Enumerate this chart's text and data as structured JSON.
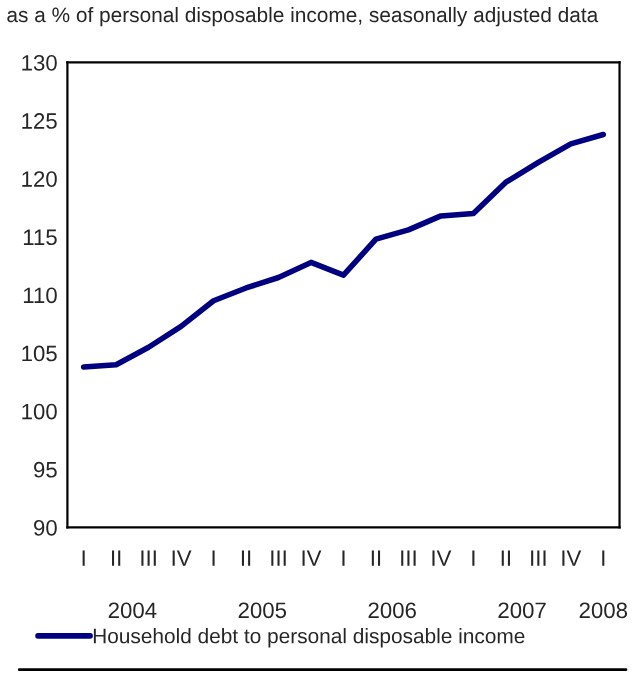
{
  "chart_data": {
    "type": "line",
    "title": "as a % of personal disposable income, seasonally adjusted data",
    "categories": [
      "I",
      "II",
      "III",
      "IV",
      "I",
      "II",
      "III",
      "IV",
      "I",
      "II",
      "III",
      "IV",
      "I",
      "II",
      "III",
      "IV",
      "I"
    ],
    "series": [
      {
        "name": "Household debt to personal disposable income",
        "color": "#000080",
        "values": [
          103.8,
          104.0,
          105.5,
          107.3,
          109.5,
          110.6,
          111.5,
          112.8,
          111.7,
          114.8,
          115.6,
          116.8,
          117.0,
          119.7,
          121.4,
          123.0,
          123.8
        ]
      }
    ],
    "annotations": [
      "2004",
      "2005",
      "2006",
      "2007",
      "2008"
    ],
    "ylim": [
      90,
      130
    ],
    "yticks": [
      90,
      95,
      100,
      105,
      110,
      115,
      120,
      125,
      130
    ],
    "grid": false,
    "legend": "bottom",
    "marker": "none",
    "line_style": "solid"
  }
}
